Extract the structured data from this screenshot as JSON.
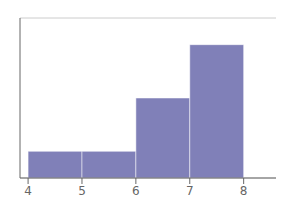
{
  "chart_data": {
    "type": "histogram",
    "bins": [
      4,
      5,
      6,
      7,
      8
    ],
    "values": [
      1,
      1,
      3,
      5
    ],
    "color": "#8080b8",
    "xlim": [
      3.85,
      8.6
    ],
    "xticks": [
      4,
      5,
      6,
      7,
      8
    ],
    "ylim": [
      0,
      6
    ],
    "yticks": [
      0,
      1,
      2,
      3,
      4,
      5,
      6
    ],
    "grid": true,
    "tick_labels": "x"
  }
}
